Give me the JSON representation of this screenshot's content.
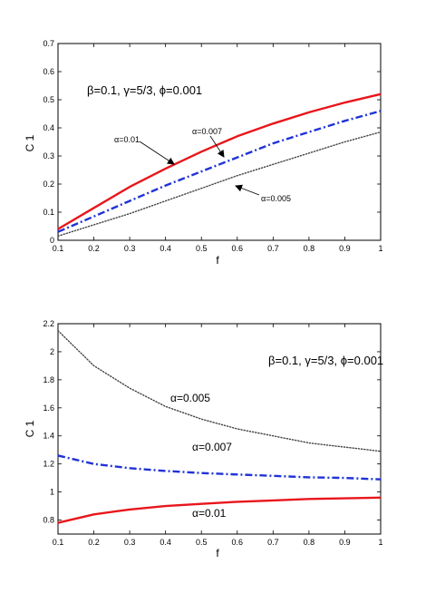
{
  "chart_data": [
    {
      "type": "line",
      "xlabel": "f",
      "ylabel": "C 1",
      "xlim": [
        0.1,
        1.0
      ],
      "ylim": [
        0.0,
        0.7
      ],
      "xticks": [
        "0.1",
        "0.2",
        "0.3",
        "0.4",
        "0.5",
        "0.6",
        "0.7",
        "0.8",
        "0.9",
        "1"
      ],
      "yticks": [
        "0",
        "0.1",
        "0.2",
        "0.3",
        "0.4",
        "0.5",
        "0.6",
        "0.7"
      ],
      "grid": false,
      "annotation": "β=0.1, γ=5/3, ϕ=0.001",
      "x": [
        0.1,
        0.2,
        0.3,
        0.4,
        0.5,
        0.6,
        0.7,
        0.8,
        0.9,
        1.0
      ],
      "series": [
        {
          "name": "α=0.01",
          "color": "#e8161b",
          "style": "solid",
          "values": [
            0.04,
            0.115,
            0.19,
            0.255,
            0.315,
            0.37,
            0.415,
            0.455,
            0.49,
            0.52
          ]
        },
        {
          "name": "α=0.007",
          "color": "#1f33d6",
          "style": "dashdot",
          "values": [
            0.03,
            0.085,
            0.14,
            0.195,
            0.245,
            0.295,
            0.345,
            0.385,
            0.425,
            0.46
          ]
        },
        {
          "name": "α=0.005",
          "color": "#444444",
          "style": "dotted",
          "values": [
            0.015,
            0.055,
            0.095,
            0.14,
            0.185,
            0.23,
            0.27,
            0.31,
            0.35,
            0.385
          ]
        }
      ],
      "labels": [
        {
          "text": "α=0.01",
          "series": 0,
          "x_target": 0.42
        },
        {
          "text": "α=0.007",
          "series": 1,
          "x_target": 0.6
        },
        {
          "text": "α=0.005",
          "series": 2,
          "x_target": 0.55
        }
      ]
    },
    {
      "type": "line",
      "xlabel": "f",
      "ylabel": "C 1",
      "xlim": [
        0.1,
        1.0
      ],
      "ylim": [
        0.7,
        2.2
      ],
      "xticks": [
        "0.1",
        "0.2",
        "0.3",
        "0.4",
        "0.5",
        "0.6",
        "0.7",
        "0.8",
        "0.9",
        "1"
      ],
      "yticks": [
        "0.8",
        "1",
        "1.2",
        "1.4",
        "1.6",
        "1.8",
        "2",
        "2.2"
      ],
      "grid": false,
      "annotation": "β=0.1, γ=5/3, ϕ=0.001",
      "x": [
        0.1,
        0.2,
        0.3,
        0.4,
        0.5,
        0.6,
        0.7,
        0.8,
        0.9,
        1.0
      ],
      "series": [
        {
          "name": "α=0.005",
          "color": "#444444",
          "style": "dotted",
          "values": [
            2.15,
            1.9,
            1.74,
            1.61,
            1.52,
            1.45,
            1.4,
            1.35,
            1.32,
            1.29
          ]
        },
        {
          "name": "α=0.007",
          "color": "#1f33d6",
          "style": "dashdot",
          "values": [
            1.26,
            1.2,
            1.17,
            1.15,
            1.135,
            1.125,
            1.115,
            1.105,
            1.1,
            1.09
          ]
        },
        {
          "name": "α=0.01",
          "color": "#e8161b",
          "style": "solid",
          "values": [
            0.78,
            0.84,
            0.875,
            0.9,
            0.915,
            0.93,
            0.94,
            0.95,
            0.955,
            0.96
          ]
        }
      ],
      "labels": [
        {
          "text": "α=0.005"
        },
        {
          "text": "α=0.007"
        },
        {
          "text": "α=0.01"
        }
      ]
    }
  ]
}
